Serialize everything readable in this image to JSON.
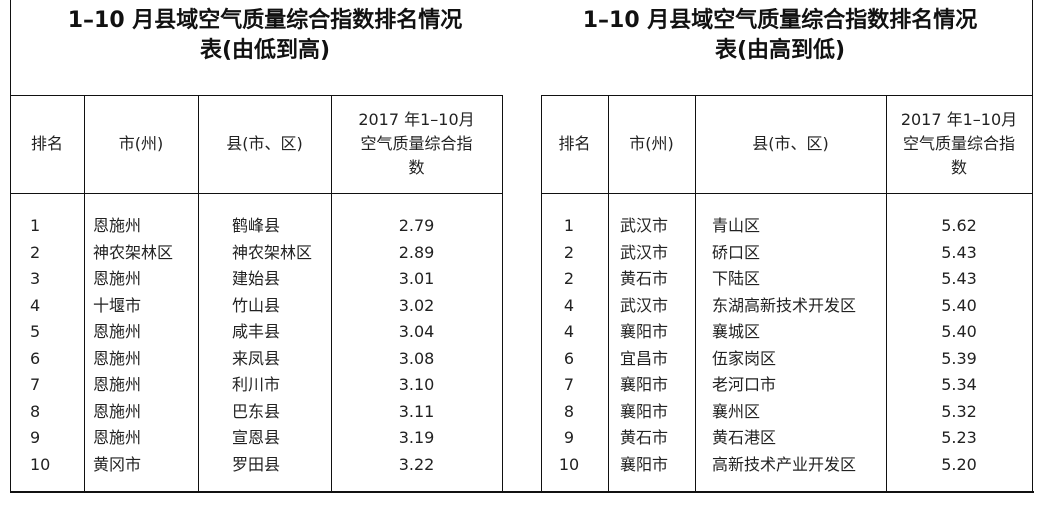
{
  "left_table": {
    "title_line1": "1–10 月县域空气质量综合指数排名情况",
    "title_line2": "表(由低到高)",
    "headers": [
      "排名",
      "市(州)",
      "县(市、区)",
      "2017 年1–10月空气质量综合指数"
    ],
    "rows": [
      {
        "rank": "1",
        "city": "恩施州",
        "county": "鹤峰县",
        "index": "2.79"
      },
      {
        "rank": "2",
        "city": "神农架林区",
        "county": "神农架林区",
        "index": "2.89"
      },
      {
        "rank": "3",
        "city": "恩施州",
        "county": "建始县",
        "index": "3.01"
      },
      {
        "rank": "4",
        "city": "十堰市",
        "county": "竹山县",
        "index": "3.02"
      },
      {
        "rank": "5",
        "city": "恩施州",
        "county": "咸丰县",
        "index": "3.04"
      },
      {
        "rank": "6",
        "city": "恩施州",
        "county": "来凤县",
        "index": "3.08"
      },
      {
        "rank": "7",
        "city": "恩施州",
        "county": "利川市",
        "index": "3.10"
      },
      {
        "rank": "8",
        "city": "恩施州",
        "county": "巴东县",
        "index": "3.11"
      },
      {
        "rank": "9",
        "city": "恩施州",
        "county": "宣恩县",
        "index": "3.19"
      },
      {
        "rank": "10",
        "city": "黄冈市",
        "county": "罗田县",
        "index": "3.22"
      }
    ]
  },
  "right_table": {
    "title_line1": "1–10 月县域空气质量综合指数排名情况",
    "title_line2": "表(由高到低)",
    "headers": [
      "排名",
      "市(州)",
      "县(市、区)",
      "2017 年1–10月空气质量综合指数"
    ],
    "rows": [
      {
        "rank": "1",
        "city": "武汉市",
        "county": "青山区",
        "index": "5.62"
      },
      {
        "rank": "2",
        "city": "武汉市",
        "county": "硚口区",
        "index": "5.43"
      },
      {
        "rank": "2",
        "city": "黄石市",
        "county": "下陆区",
        "index": "5.43"
      },
      {
        "rank": "4",
        "city": "武汉市",
        "county": "东湖高新技术开发区",
        "index": "5.40"
      },
      {
        "rank": "4",
        "city": "襄阳市",
        "county": "襄城区",
        "index": "5.40"
      },
      {
        "rank": "6",
        "city": "宜昌市",
        "county": "伍家岗区",
        "index": "5.39"
      },
      {
        "rank": "7",
        "city": "襄阳市",
        "county": "老河口市",
        "index": "5.34"
      },
      {
        "rank": "8",
        "city": "襄阳市",
        "county": "襄州区",
        "index": "5.32"
      },
      {
        "rank": "9",
        "city": "黄石市",
        "county": "黄石港区",
        "index": "5.23"
      },
      {
        "rank": "10",
        "city": "襄阳市",
        "county": "高新技术产业开发区",
        "index": "5.20"
      }
    ]
  }
}
